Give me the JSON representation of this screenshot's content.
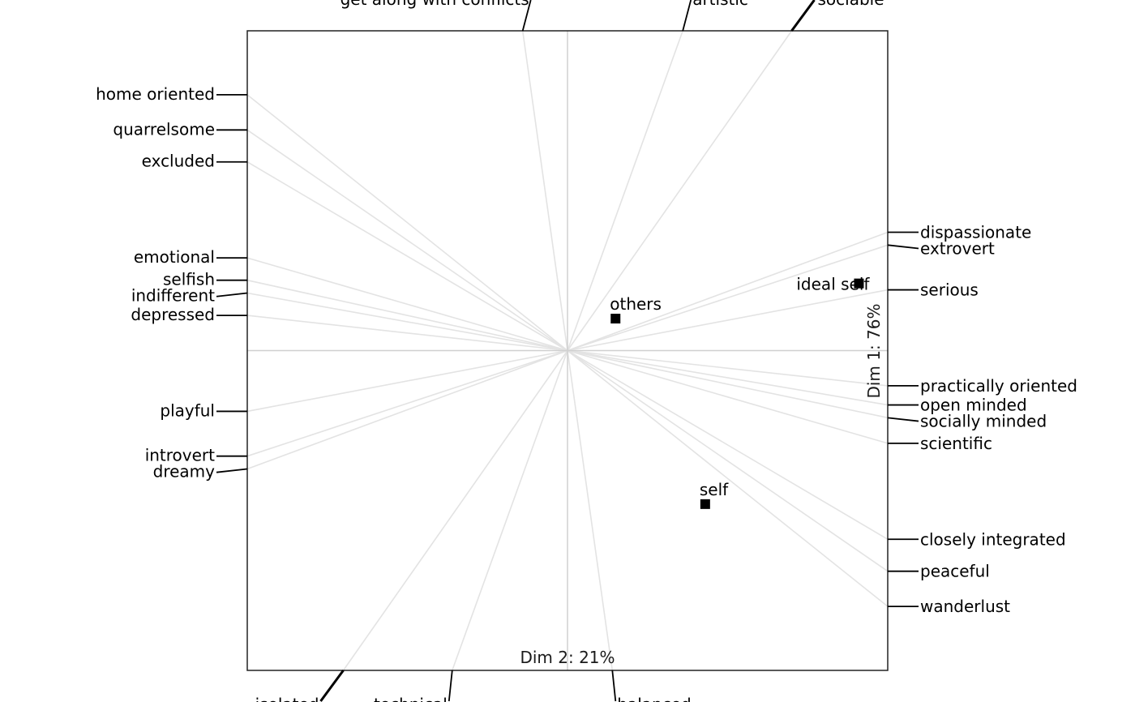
{
  "chart_data": {
    "type": "scatter",
    "subtype": "biplot",
    "title": "",
    "xlabel": "Dim 2: 21%",
    "ylabel": "Dim 1: 76%",
    "xlim": [
      -1,
      1
    ],
    "ylim": [
      -1,
      1
    ],
    "grid": false,
    "elements": [
      {
        "name": "self",
        "x": 0.43,
        "y": -0.48
      },
      {
        "name": "ideal self",
        "x": 0.91,
        "y": 0.21
      },
      {
        "name": "others",
        "x": 0.15,
        "y": 0.1
      }
    ],
    "constructs": [
      {
        "name": "get along with conflicts",
        "x": -0.14,
        "y": 1.0,
        "side": "top"
      },
      {
        "name": "artistic",
        "x": 0.36,
        "y": 1.0,
        "side": "top"
      },
      {
        "name": "sociable",
        "x": 0.7,
        "y": 1.0,
        "side": "top",
        "bold": true
      },
      {
        "name": "home oriented",
        "x": -1.0,
        "y": 0.8,
        "side": "left"
      },
      {
        "name": "quarrelsome",
        "x": -1.0,
        "y": 0.69,
        "side": "left"
      },
      {
        "name": "excluded",
        "x": -1.0,
        "y": 0.59,
        "side": "left"
      },
      {
        "name": "emotional",
        "x": -1.0,
        "y": 0.29,
        "side": "left"
      },
      {
        "name": "selfish",
        "x": -1.0,
        "y": 0.22,
        "side": "left"
      },
      {
        "name": "indifferent",
        "x": -1.0,
        "y": 0.18,
        "side": "left"
      },
      {
        "name": "depressed",
        "x": -1.0,
        "y": 0.11,
        "side": "left"
      },
      {
        "name": "playful",
        "x": -1.0,
        "y": -0.19,
        "side": "left"
      },
      {
        "name": "introvert",
        "x": -1.0,
        "y": -0.33,
        "side": "left"
      },
      {
        "name": "dreamy",
        "x": -1.0,
        "y": -0.37,
        "side": "left"
      },
      {
        "name": "dispassionate",
        "x": 1.0,
        "y": 0.37,
        "side": "right"
      },
      {
        "name": "extrovert",
        "x": 1.0,
        "y": 0.33,
        "side": "right"
      },
      {
        "name": "serious",
        "x": 1.0,
        "y": 0.19,
        "side": "right"
      },
      {
        "name": "practically oriented",
        "x": 1.0,
        "y": -0.11,
        "side": "right"
      },
      {
        "name": "open minded",
        "x": 1.0,
        "y": -0.17,
        "side": "right"
      },
      {
        "name": "socially minded",
        "x": 1.0,
        "y": -0.21,
        "side": "right"
      },
      {
        "name": "scientific",
        "x": 1.0,
        "y": -0.29,
        "side": "right"
      },
      {
        "name": "closely integrated",
        "x": 1.0,
        "y": -0.59,
        "side": "right"
      },
      {
        "name": "peaceful",
        "x": 1.0,
        "y": -0.69,
        "side": "right"
      },
      {
        "name": "wanderlust",
        "x": 1.0,
        "y": -0.8,
        "side": "right"
      },
      {
        "name": "isolated",
        "x": -0.7,
        "y": -1.0,
        "side": "bottom",
        "bold": true
      },
      {
        "name": "technical",
        "x": -0.36,
        "y": -1.0,
        "side": "bottom"
      },
      {
        "name": "balanced",
        "x": 0.14,
        "y": -1.0,
        "side": "bottom"
      }
    ]
  }
}
